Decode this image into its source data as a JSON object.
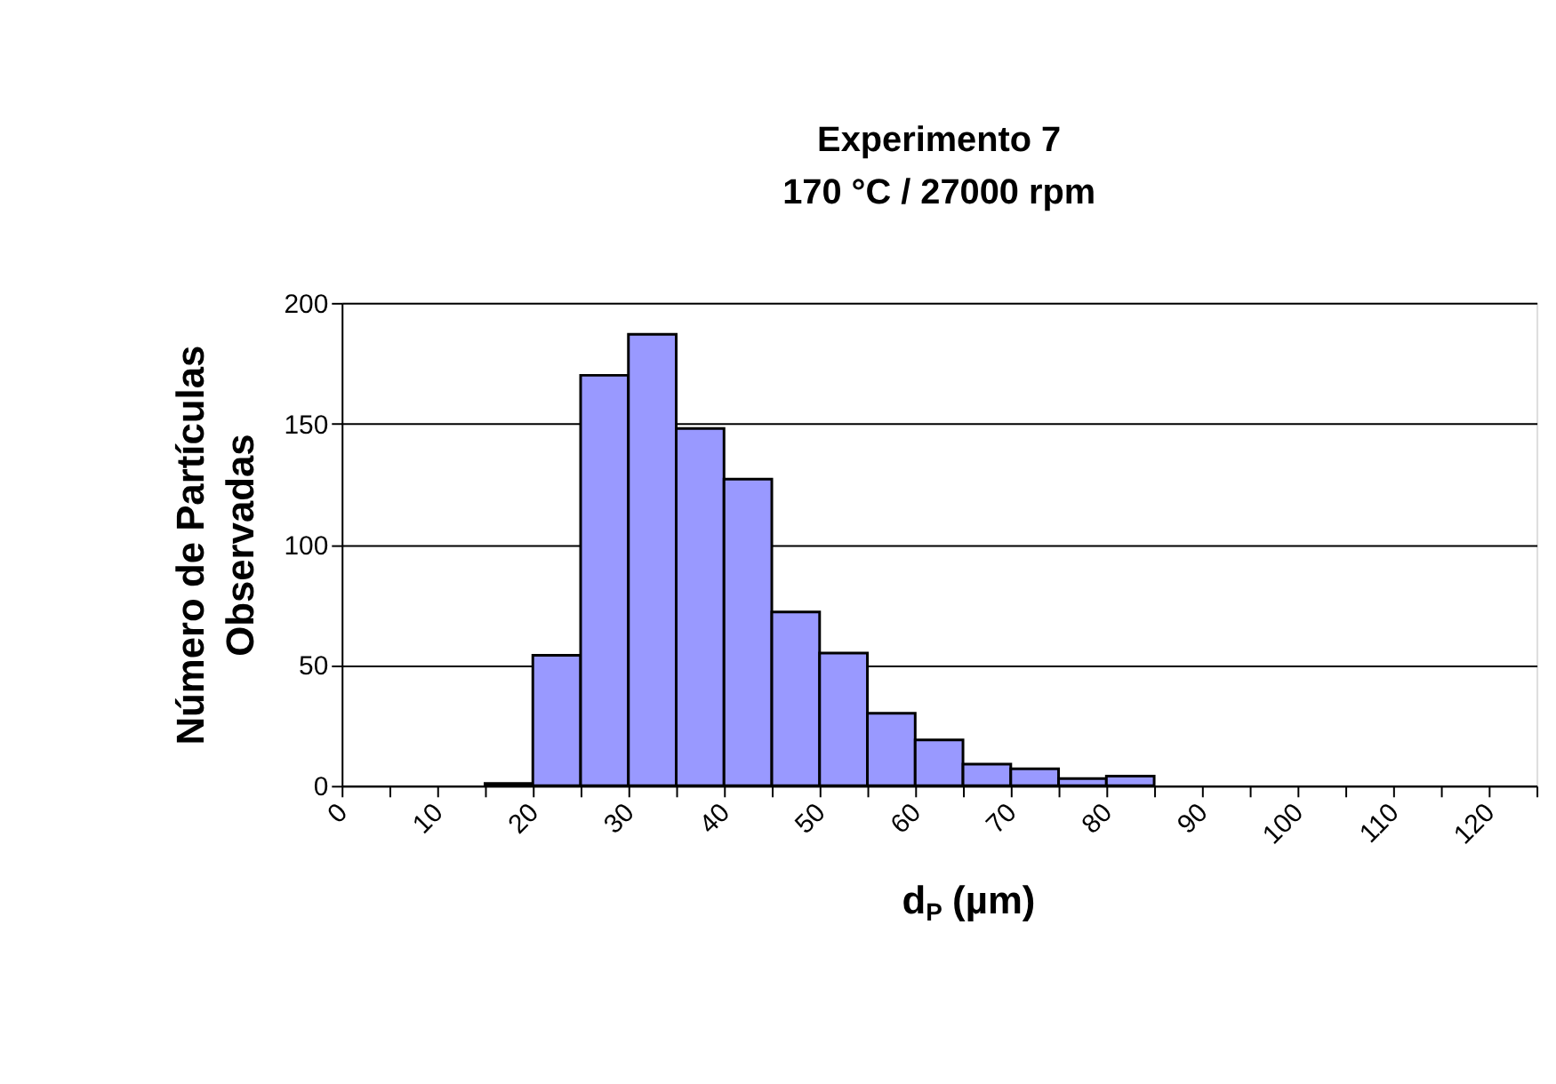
{
  "chart_data": {
    "type": "histogram",
    "title": "Experimento 7",
    "subtitle": "170 °C / 27000 rpm",
    "xlabel": "d$_{P}$ (µm)",
    "ylabel": "Número de Partículas Observadas",
    "bins": [
      0,
      5,
      10,
      15,
      20,
      25,
      30,
      35,
      40,
      45,
      50,
      55,
      60,
      65,
      70,
      75,
      80,
      85,
      90,
      95,
      100,
      105,
      110,
      115,
      120,
      125
    ],
    "values": [
      0,
      0,
      0,
      1,
      54,
      170,
      187,
      148,
      127,
      72,
      55,
      30,
      19,
      9,
      7,
      3,
      4,
      0,
      0,
      0,
      0,
      0,
      0,
      0,
      0
    ],
    "color": "#9999ff",
    "xlim": [
      0,
      125
    ],
    "xticks": [
      0,
      {
        "value": 5,
        "label": null
      },
      10,
      {
        "value": 15,
        "label": null
      },
      20,
      {
        "value": 25,
        "label": null
      },
      30,
      {
        "value": 35,
        "label": null
      },
      40,
      {
        "value": 45,
        "label": null
      },
      50,
      {
        "value": 55,
        "label": null
      },
      60,
      {
        "value": 65,
        "label": null
      },
      70,
      {
        "value": 75,
        "label": null
      },
      80,
      {
        "value": 85,
        "label": null
      },
      90,
      {
        "value": 95,
        "label": null
      },
      100,
      {
        "value": 105,
        "label": null
      },
      110,
      {
        "value": 115,
        "label": null
      },
      120,
      {
        "value": 125,
        "label": null
      }
    ],
    "ylim": [
      0,
      200
    ],
    "yticks": [
      0,
      50,
      100,
      150,
      200
    ],
    "grid": "y"
  }
}
